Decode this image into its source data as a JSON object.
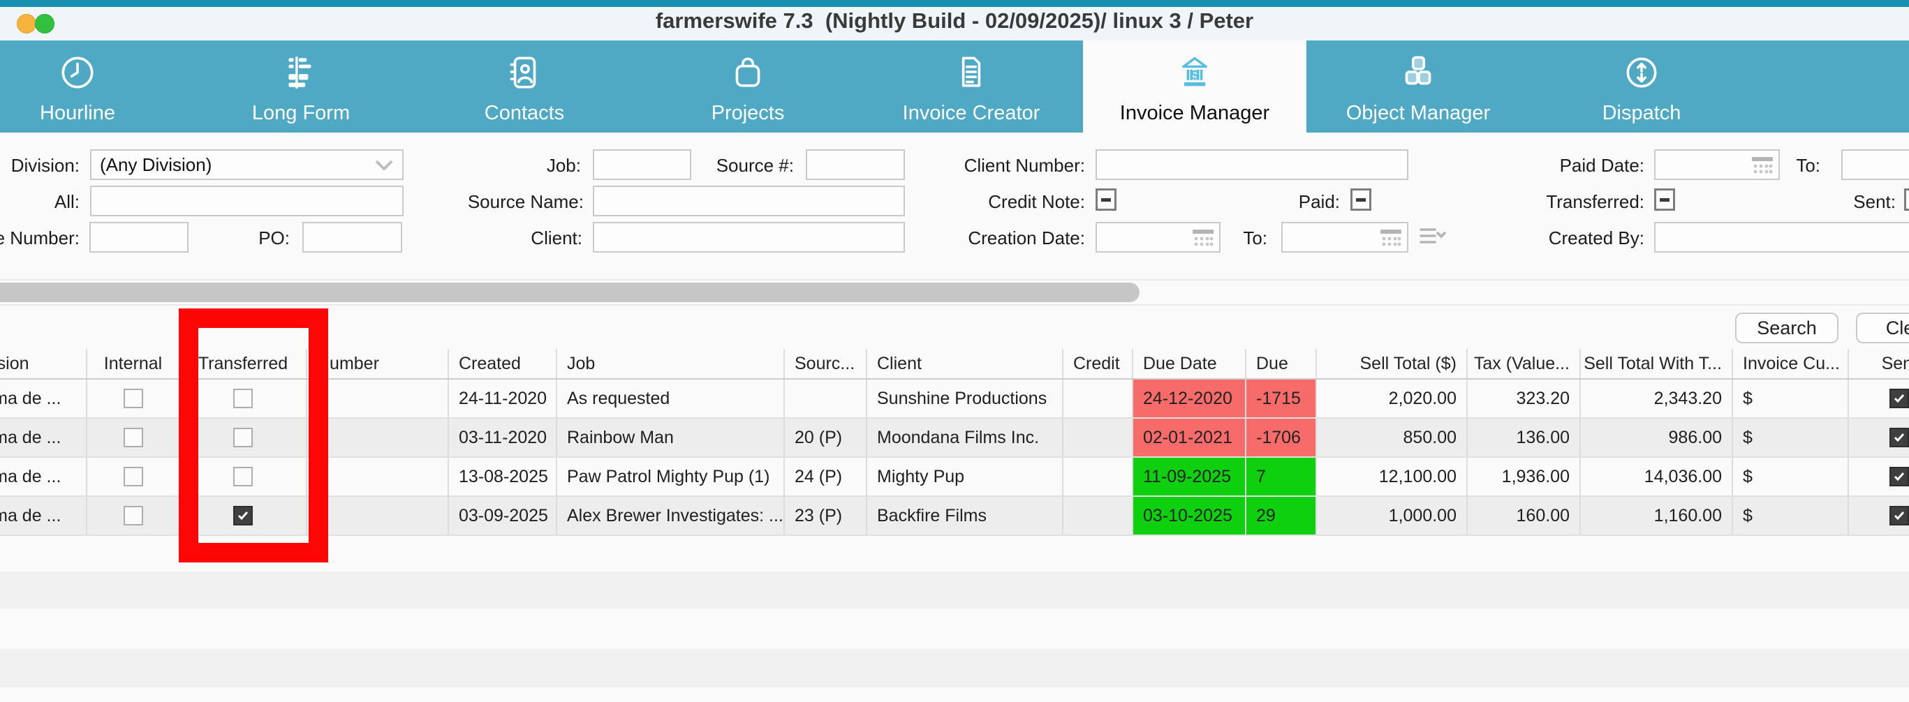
{
  "window": {
    "title": "farmerswife 7.3  (Nightly Build - 02/09/2025)/ linux 3 / Peter"
  },
  "tabs": {
    "items": [
      {
        "label": "Hourline",
        "icon": "clock-icon",
        "selected": false
      },
      {
        "label": "Long Form",
        "icon": "long-form-icon",
        "selected": false
      },
      {
        "label": "Contacts",
        "icon": "address-book-icon",
        "selected": false
      },
      {
        "label": "Projects",
        "icon": "bag-icon",
        "selected": false
      },
      {
        "label": "Invoice Creator",
        "icon": "invoice-document-icon",
        "selected": false
      },
      {
        "label": "Invoice Manager",
        "icon": "bank-icon",
        "selected": true
      },
      {
        "label": "Object Manager",
        "icon": "objects-icon",
        "selected": false
      },
      {
        "label": "Dispatch",
        "icon": "dispatch-arrows-icon",
        "selected": false
      }
    ]
  },
  "filters": {
    "division": {
      "label": "Division:",
      "value": "(Any Division)"
    },
    "all": {
      "label": "All:",
      "value": ""
    },
    "invoice_number": {
      "label": "Invoice Number:",
      "value": ""
    },
    "po": {
      "label": "PO:",
      "value": ""
    },
    "job": {
      "label": "Job:",
      "value": ""
    },
    "source_number": {
      "label": "Source #:",
      "value": ""
    },
    "source_name": {
      "label": "Source Name:",
      "value": ""
    },
    "client": {
      "label": "Client:",
      "value": ""
    },
    "client_number": {
      "label": "Client Number:",
      "value": ""
    },
    "credit_note": {
      "label": "Credit Note:",
      "state": "indeterminate"
    },
    "paid": {
      "label": "Paid:",
      "state": "indeterminate"
    },
    "creation_date": {
      "label": "Creation Date:",
      "value": ""
    },
    "creation_date_to": {
      "label": "To:",
      "value": ""
    },
    "paid_date": {
      "label": "Paid Date:",
      "value": ""
    },
    "paid_date_to": {
      "label": "To:",
      "value": ""
    },
    "transferred": {
      "label": "Transferred:",
      "state": "indeterminate"
    },
    "sent": {
      "label": "Sent:",
      "state": "indeterminate"
    },
    "created_by": {
      "label": "Created By:",
      "value": ""
    }
  },
  "actions": {
    "search": "Search",
    "clear": "Clear"
  },
  "table": {
    "columns": [
      {
        "key": "division",
        "label": "Division"
      },
      {
        "key": "internal",
        "label": "Internal"
      },
      {
        "key": "transferred",
        "label": "Transferred"
      },
      {
        "key": "number",
        "label": "Number"
      },
      {
        "key": "created",
        "label": "Created"
      },
      {
        "key": "job",
        "label": "Job"
      },
      {
        "key": "source",
        "label": "Sourc..."
      },
      {
        "key": "client",
        "label": "Client"
      },
      {
        "key": "credit",
        "label": "Credit"
      },
      {
        "key": "due_date",
        "label": "Due Date"
      },
      {
        "key": "due",
        "label": "Due"
      },
      {
        "key": "sell_total",
        "label": "Sell Total ($)"
      },
      {
        "key": "tax",
        "label": "Tax (Value..."
      },
      {
        "key": "sell_total_with_tax",
        "label": "Sell Total With T..."
      },
      {
        "key": "invoice_currency",
        "label": "Invoice Cu..."
      },
      {
        "key": "sent",
        "label": "Sent"
      }
    ],
    "rows": [
      {
        "division": "Palma de ...",
        "internal": false,
        "transferred": false,
        "number": "",
        "created": "24-11-2020",
        "job": "As requested",
        "source": "",
        "client": "Sunshine Productions",
        "credit": "",
        "due_date": "24-12-2020",
        "due": "-1715",
        "due_status": "overdue",
        "sell_total": "2,020.00",
        "tax": "323.20",
        "sell_total_with_tax": "2,343.20",
        "invoice_currency": "$",
        "sent": true
      },
      {
        "division": "Palma de ...",
        "internal": false,
        "transferred": false,
        "number": "",
        "created": "03-11-2020",
        "job": "Rainbow Man",
        "source": "20 (P)",
        "client": "Moondana Films Inc.",
        "credit": "",
        "due_date": "02-01-2021",
        "due": "-1706",
        "due_status": "overdue",
        "sell_total": "850.00",
        "tax": "136.00",
        "sell_total_with_tax": "986.00",
        "invoice_currency": "$",
        "sent": true
      },
      {
        "division": "Palma de ...",
        "internal": false,
        "transferred": false,
        "number": "",
        "created": "13-08-2025",
        "job": "Paw Patrol Mighty Pup (1)",
        "source": "24 (P)",
        "client": "Mighty Pup",
        "credit": "",
        "due_date": "11-09-2025",
        "due": "7",
        "due_status": "ok",
        "sell_total": "12,100.00",
        "tax": "1,936.00",
        "sell_total_with_tax": "14,036.00",
        "invoice_currency": "$",
        "sent": true
      },
      {
        "division": "Palma de ...",
        "internal": false,
        "transferred": true,
        "number": "",
        "created": "03-09-2025",
        "job": "Alex Brewer Investigates: ...",
        "source": "23 (P)",
        "client": "Backfire Films",
        "credit": "",
        "due_date": "03-10-2025",
        "due": "29",
        "due_status": "ok",
        "sell_total": "1,000.00",
        "tax": "160.00",
        "sell_total_with_tax": "1,160.00",
        "invoice_currency": "$",
        "sent": true
      }
    ]
  },
  "annotation": {
    "target_column": "Transferred",
    "highlight_color": "#fc0606"
  },
  "colors": {
    "tabbar_teal": "#4fa9c5",
    "top_strip_teal": "#1790b2",
    "selected_tab_icon_blue": "#55bfe3",
    "overdue_cell_red": "#f76b6b",
    "ok_cell_green": "#0fd00f",
    "annotation_red": "#fc0606"
  }
}
